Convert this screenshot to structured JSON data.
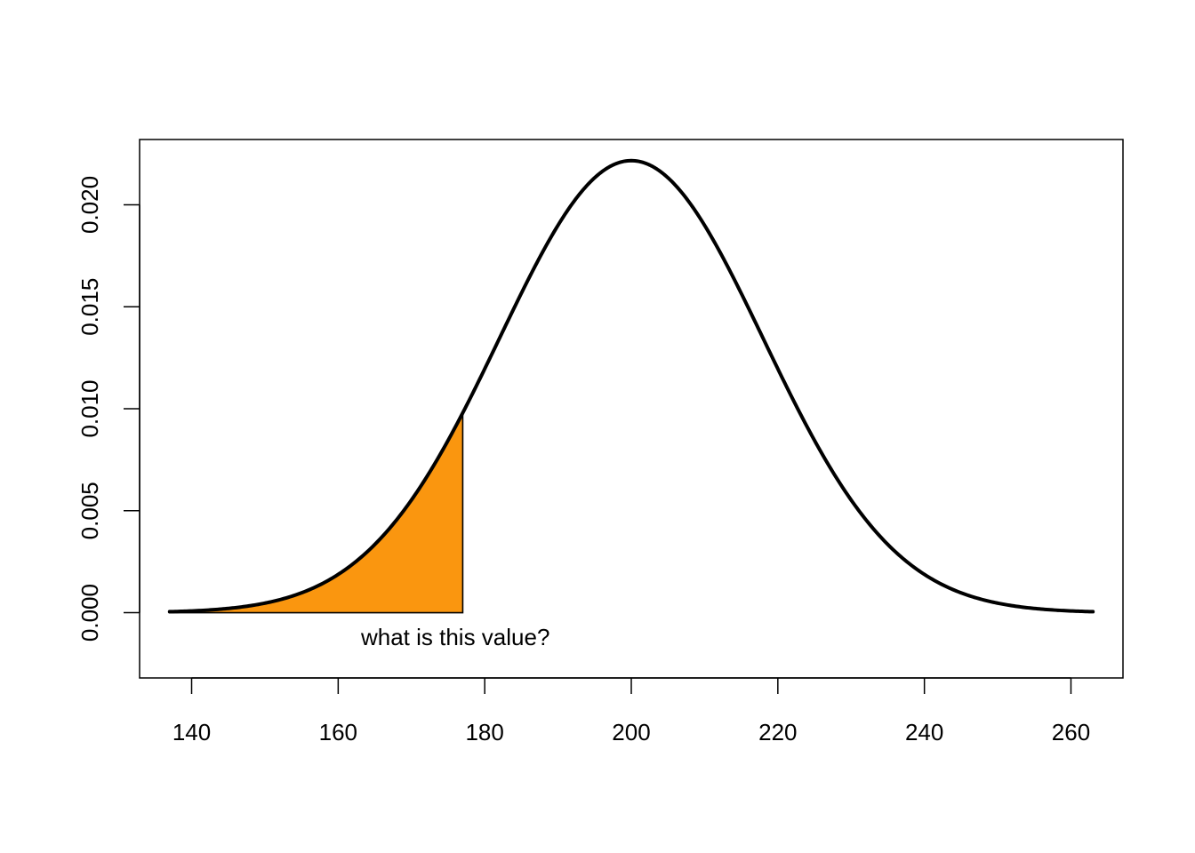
{
  "chart_data": {
    "type": "area",
    "title": "",
    "xlabel": "",
    "ylabel": "",
    "xlim": [
      132.9,
      267.1
    ],
    "ylim": [
      -0.0032,
      0.0232
    ],
    "x_ticks": [
      140,
      160,
      180,
      200,
      220,
      240,
      260
    ],
    "x_tick_labels": [
      "140",
      "160",
      "180",
      "200",
      "220",
      "240",
      "260"
    ],
    "y_ticks": [
      0,
      0.005,
      0.01,
      0.015,
      0.02
    ],
    "y_tick_labels": [
      "0.000",
      "0.005",
      "0.010",
      "0.015",
      "0.020"
    ],
    "series": [
      {
        "distribution": "normal",
        "mean": 200,
        "sd": 18,
        "x_range": [
          137,
          263
        ],
        "line_color": "#000000"
      }
    ],
    "shaded_region": {
      "x_from": 137,
      "x_to": 177,
      "fill_color": "#FA960F"
    },
    "annotations": [
      {
        "text": "what is this value?",
        "x": 176,
        "y": -0.0012
      }
    ],
    "grid": false,
    "legend": "none",
    "box": true
  }
}
